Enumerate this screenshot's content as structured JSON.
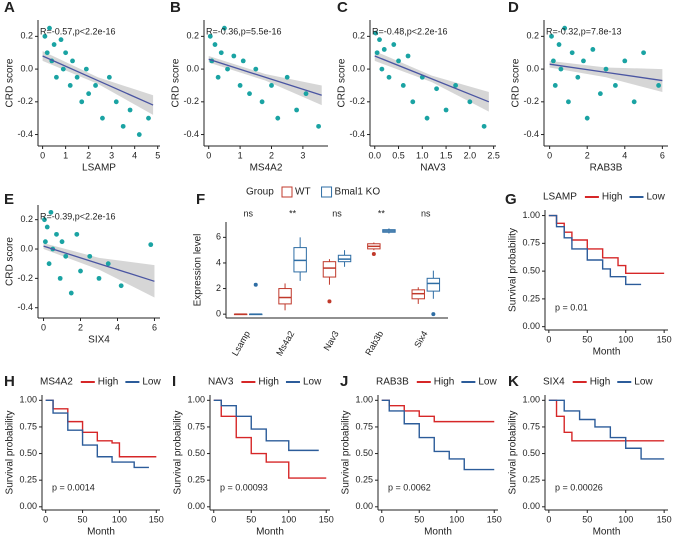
{
  "chart_data": [
    {
      "type": "scatter",
      "label": "A",
      "annotation": "R=-0.57,p<2.2e-16",
      "x_label": "LSAMP",
      "y_label": "CRD score",
      "color": "#1aa3a3",
      "x": [
        0.1,
        0.2,
        0.3,
        0.4,
        0.5,
        0.6,
        0.8,
        0.9,
        1.0,
        1.2,
        1.3,
        1.5,
        1.7,
        1.9,
        2.0,
        2.3,
        2.6,
        2.9,
        3.2,
        3.5,
        3.8,
        4.2,
        4.6
      ],
      "values": [
        0.2,
        0.1,
        0.25,
        0.05,
        0.15,
        -0.05,
        0.18,
        0.0,
        0.1,
        -0.1,
        0.05,
        -0.05,
        -0.2,
        0.0,
        -0.15,
        -0.1,
        -0.3,
        -0.05,
        -0.2,
        -0.35,
        -0.25,
        -0.4,
        -0.3
      ],
      "trend": {
        "color": "#4a55a2",
        "x": [
          0,
          2.4,
          4.8
        ],
        "y": [
          0.08,
          -0.07,
          -0.22
        ],
        "lower": [
          0.05,
          -0.09,
          -0.28
        ],
        "upper": [
          0.11,
          -0.05,
          -0.16
        ]
      },
      "xlim": [
        -0.2,
        5.1
      ],
      "xticks": [
        0,
        1,
        2,
        3,
        4,
        5
      ],
      "ylim": [
        -0.47,
        0.3
      ],
      "yticks": [
        0.2,
        {
          "value": 0,
          "label": "0.0"
        },
        -0.2,
        -0.4
      ]
    },
    {
      "type": "scatter",
      "label": "B",
      "annotation": "R=-0.36,p=5.5e-16",
      "x_label": "MS4A2",
      "y_label": "CRD score",
      "color": "#1aa3a3",
      "x": [
        0.05,
        0.1,
        0.2,
        0.3,
        0.4,
        0.5,
        0.6,
        0.8,
        1.0,
        1.1,
        1.3,
        1.5,
        1.7,
        2.0,
        2.2,
        2.5,
        2.8,
        3.1,
        3.5
      ],
      "values": [
        0.2,
        0.05,
        0.15,
        -0.05,
        0.1,
        0.25,
        0.0,
        0.08,
        -0.1,
        0.05,
        -0.15,
        0.0,
        -0.2,
        -0.1,
        -0.3,
        -0.05,
        -0.25,
        -0.15,
        -0.35
      ],
      "trend": {
        "color": "#4a55a2",
        "x": [
          0,
          1.8,
          3.6
        ],
        "y": [
          0.06,
          -0.05,
          -0.16
        ],
        "lower": [
          0.04,
          -0.07,
          -0.22
        ],
        "upper": [
          0.08,
          -0.03,
          -0.1
        ]
      },
      "xlim": [
        -0.15,
        3.8
      ],
      "xticks": [
        0,
        1,
        2,
        3
      ],
      "ylim": [
        -0.47,
        0.3
      ],
      "yticks": [
        0.2,
        {
          "value": 0,
          "label": "0.0"
        },
        -0.2,
        -0.4
      ]
    },
    {
      "type": "scatter",
      "label": "C",
      "annotation": "R=-0.48,p<2.2e-16",
      "x_label": "NAV3",
      "y_label": "CRD score",
      "color": "#1aa3a3",
      "x": [
        0.02,
        0.05,
        0.1,
        0.15,
        0.2,
        0.3,
        0.4,
        0.5,
        0.6,
        0.7,
        0.8,
        1.0,
        1.1,
        1.3,
        1.5,
        1.7,
        2.0,
        2.3
      ],
      "values": [
        0.22,
        0.1,
        0.18,
        0.0,
        0.12,
        -0.05,
        0.15,
        0.05,
        -0.1,
        0.08,
        -0.2,
        -0.05,
        -0.3,
        -0.12,
        -0.25,
        -0.1,
        -0.2,
        -0.35
      ],
      "trend": {
        "color": "#4a55a2",
        "x": [
          0,
          1.2,
          2.4
        ],
        "y": [
          0.08,
          -0.06,
          -0.2
        ],
        "lower": [
          0.05,
          -0.08,
          -0.26
        ],
        "upper": [
          0.11,
          -0.04,
          -0.14
        ]
      },
      "xlim": [
        -0.1,
        2.55
      ],
      "xticks": [
        {
          "value": 0,
          "label": "0.0"
        },
        0.5,
        {
          "value": 1,
          "label": "1.0"
        },
        1.5,
        {
          "value": 2,
          "label": "2.0"
        },
        2.5
      ],
      "ylim": [
        -0.47,
        0.3
      ],
      "yticks": [
        0.2,
        {
          "value": 0,
          "label": "0.0"
        },
        -0.2,
        -0.4
      ]
    },
    {
      "type": "scatter",
      "label": "D",
      "annotation": "R=-0.32,p=7.8e-13",
      "x_label": "RAB3B",
      "y_label": "CRD score",
      "color": "#1aa3a3",
      "x": [
        0.1,
        0.2,
        0.3,
        0.5,
        0.6,
        0.8,
        1.0,
        1.2,
        1.5,
        1.8,
        2.0,
        2.3,
        2.7,
        3.0,
        3.5,
        4.0,
        4.5,
        5.0,
        5.8
      ],
      "values": [
        0.2,
        0.05,
        -0.1,
        0.15,
        0.0,
        0.25,
        -0.2,
        0.1,
        -0.05,
        0.05,
        -0.3,
        0.12,
        -0.15,
        0.0,
        -0.1,
        0.05,
        -0.2,
        0.1,
        -0.1
      ],
      "trend": {
        "color": "#4a55a2",
        "x": [
          0,
          3,
          6
        ],
        "y": [
          0.03,
          -0.02,
          -0.07
        ],
        "lower": [
          0.01,
          -0.05,
          -0.14
        ],
        "upper": [
          0.05,
          0.01,
          0.0
        ]
      },
      "xlim": [
        -0.3,
        6.3
      ],
      "xticks": [
        0,
        2,
        4,
        6
      ],
      "ylim": [
        -0.47,
        0.3
      ],
      "yticks": [
        0.2,
        {
          "value": 0,
          "label": "0.0"
        },
        -0.2,
        -0.4
      ]
    },
    {
      "type": "scatter",
      "label": "E",
      "annotation": "R=-0.39,p<2.2e-16",
      "x_label": "SIX4",
      "y_label": "CRD score",
      "color": "#1aa3a3",
      "x": [
        0.05,
        0.1,
        0.2,
        0.3,
        0.4,
        0.5,
        0.7,
        0.9,
        1.0,
        1.2,
        1.5,
        1.8,
        2.0,
        2.5,
        3.0,
        3.5,
        4.2,
        5.8
      ],
      "values": [
        0.2,
        0.05,
        0.15,
        -0.1,
        0.25,
        0.0,
        0.1,
        -0.2,
        0.05,
        -0.05,
        -0.3,
        0.1,
        -0.15,
        -0.05,
        -0.2,
        -0.1,
        -0.25,
        0.03
      ],
      "trend": {
        "color": "#4a55a2",
        "x": [
          0,
          3,
          6
        ],
        "y": [
          0.02,
          -0.1,
          -0.22
        ],
        "lower": [
          0.0,
          -0.14,
          -0.33
        ],
        "upper": [
          0.04,
          -0.06,
          -0.11
        ]
      },
      "xlim": [
        -0.3,
        6.3
      ],
      "xticks": [
        0,
        2,
        4,
        6
      ],
      "ylim": [
        -0.47,
        0.3
      ],
      "yticks": [
        0.2,
        {
          "value": 0,
          "label": "0.0"
        },
        -0.2,
        -0.4
      ]
    },
    {
      "type": "box",
      "label": "F",
      "legend_title": "Group",
      "y_label": "Expression level",
      "categories": [
        "Lsamp",
        "Ms4a2",
        "Nav3",
        "Rab3b",
        "Six4"
      ],
      "annotations": [
        "ns",
        "**",
        "ns",
        "**",
        "ns"
      ],
      "series": [
        {
          "name": "WT",
          "color": "#c0392b",
          "values": [
            {
              "min": -0.05,
              "q1": 0,
              "median": 0,
              "q3": 0,
              "max": 0.05
            },
            {
              "min": 0.3,
              "q1": 0.8,
              "median": 1.3,
              "q3": 2.0,
              "max": 2.4
            },
            {
              "min": 2.3,
              "q1": 2.9,
              "median": 3.6,
              "q3": 4.1,
              "max": 4.3
            },
            {
              "min": 5.0,
              "q1": 5.1,
              "median": 5.3,
              "q3": 5.5,
              "max": 5.6
            },
            {
              "min": 0.8,
              "q1": 1.2,
              "median": 1.6,
              "q3": 1.9,
              "max": 2.1
            }
          ],
          "outliers": [
            [],
            [],
            [
              1.0
            ],
            [
              4.7
            ],
            []
          ]
        },
        {
          "name": "Bmal1 KO",
          "color": "#2e6da4",
          "values": [
            {
              "min": 0,
              "q1": 0,
              "median": 0,
              "q3": 0,
              "max": 0
            },
            {
              "min": 2.6,
              "q1": 3.3,
              "median": 4.2,
              "q3": 5.2,
              "max": 6.0
            },
            {
              "min": 3.7,
              "q1": 4.1,
              "median": 4.3,
              "q3": 4.6,
              "max": 5.0
            },
            {
              "min": 6.3,
              "q1": 6.4,
              "median": 6.5,
              "q3": 6.6,
              "max": 6.7
            },
            {
              "min": 1.2,
              "q1": 1.8,
              "median": 2.4,
              "q3": 2.8,
              "max": 3.4
            }
          ],
          "outliers": [
            [
              2.3
            ],
            [],
            [],
            [],
            [
              0
            ]
          ]
        }
      ],
      "ylim": [
        -0.3,
        7.2
      ],
      "yticks": [
        0,
        2,
        4,
        6
      ]
    },
    {
      "type": "survival",
      "label": "G",
      "legend_title": "LSAMP",
      "annotation": "p = 0.01",
      "x_label": "Month",
      "y_label": "Survival probability",
      "series": [
        {
          "name": "High",
          "color": "#d62728",
          "x": [
            0,
            10,
            20,
            30,
            50,
            70,
            90,
            100,
            120,
            150
          ],
          "values": [
            1,
            0.93,
            0.85,
            0.78,
            0.7,
            0.62,
            0.55,
            0.48,
            0.48,
            0.48
          ]
        },
        {
          "name": "Low",
          "color": "#2c5c9a",
          "x": [
            0,
            10,
            20,
            30,
            50,
            70,
            80,
            100,
            120
          ],
          "values": [
            1,
            0.9,
            0.8,
            0.7,
            0.6,
            0.52,
            0.45,
            0.38,
            0.38
          ]
        }
      ],
      "xlim": [
        -5,
        155
      ],
      "xticks": [
        0,
        50,
        100,
        150
      ],
      "ylim": [
        -0.03,
        1.05
      ],
      "yticks": [
        {
          "value": 0,
          "label": "0.00"
        },
        {
          "value": 0.25,
          "label": "0.25"
        },
        {
          "value": 0.5,
          "label": "0.50"
        },
        {
          "value": 0.75,
          "label": "0.75"
        },
        {
          "value": 1,
          "label": "1.00"
        }
      ]
    },
    {
      "type": "survival",
      "label": "H",
      "legend_title": "MS4A2",
      "annotation": "p = 0.0014",
      "x_label": "Month",
      "y_label": "Survival probability",
      "series": [
        {
          "name": "High",
          "color": "#d62728",
          "x": [
            0,
            10,
            30,
            50,
            70,
            90,
            100,
            150
          ],
          "values": [
            1,
            0.92,
            0.8,
            0.7,
            0.62,
            0.6,
            0.47,
            0.47
          ]
        },
        {
          "name": "Low",
          "color": "#2c5c9a",
          "x": [
            0,
            10,
            30,
            50,
            70,
            90,
            120,
            140
          ],
          "values": [
            1,
            0.88,
            0.72,
            0.58,
            0.47,
            0.42,
            0.37,
            0.37
          ]
        }
      ],
      "xlim": [
        -5,
        155
      ],
      "xticks": [
        0,
        50,
        100,
        150
      ],
      "ylim": [
        -0.03,
        1.05
      ],
      "yticks": [
        {
          "value": 0,
          "label": "0.00"
        },
        {
          "value": 0.25,
          "label": "0.25"
        },
        {
          "value": 0.5,
          "label": "0.50"
        },
        {
          "value": 0.75,
          "label": "0.75"
        },
        {
          "value": 1,
          "label": "1.00"
        }
      ]
    },
    {
      "type": "survival",
      "label": "I",
      "legend_title": "NAV3",
      "annotation": "p = 0.00093",
      "x_label": "Month",
      "y_label": "Survival probability",
      "series": [
        {
          "name": "High",
          "color": "#d62728",
          "x": [
            0,
            10,
            30,
            50,
            70,
            100,
            150
          ],
          "values": [
            1,
            0.85,
            0.65,
            0.5,
            0.42,
            0.27,
            0.27
          ]
        },
        {
          "name": "Low",
          "color": "#2c5c9a",
          "x": [
            0,
            10,
            30,
            50,
            70,
            100,
            140
          ],
          "values": [
            1,
            0.95,
            0.85,
            0.73,
            0.62,
            0.53,
            0.53
          ]
        }
      ],
      "xlim": [
        -5,
        155
      ],
      "xticks": [
        0,
        50,
        100,
        150
      ],
      "ylim": [
        -0.03,
        1.05
      ],
      "yticks": [
        {
          "value": 0,
          "label": "0.00"
        },
        {
          "value": 0.25,
          "label": "0.25"
        },
        {
          "value": 0.5,
          "label": "0.50"
        },
        {
          "value": 0.75,
          "label": "0.75"
        },
        {
          "value": 1,
          "label": "1.00"
        }
      ]
    },
    {
      "type": "survival",
      "label": "J",
      "legend_title": "RAB3B",
      "annotation": "p = 0.0062",
      "x_label": "Month",
      "y_label": "Survival probability",
      "series": [
        {
          "name": "High",
          "color": "#d62728",
          "x": [
            0,
            10,
            30,
            50,
            70,
            150
          ],
          "values": [
            1,
            0.95,
            0.9,
            0.85,
            0.8,
            0.8
          ]
        },
        {
          "name": "Low",
          "color": "#2c5c9a",
          "x": [
            0,
            10,
            30,
            50,
            70,
            90,
            110,
            150
          ],
          "values": [
            1,
            0.9,
            0.78,
            0.65,
            0.52,
            0.45,
            0.35,
            0.35
          ]
        }
      ],
      "xlim": [
        -5,
        155
      ],
      "xticks": [
        0,
        50,
        100,
        150
      ],
      "ylim": [
        -0.03,
        1.05
      ],
      "yticks": [
        {
          "value": 0,
          "label": "0.00"
        },
        {
          "value": 0.25,
          "label": "0.25"
        },
        {
          "value": 0.5,
          "label": "0.50"
        },
        {
          "value": 0.75,
          "label": "0.75"
        },
        {
          "value": 1,
          "label": "1.00"
        }
      ]
    },
    {
      "type": "survival",
      "label": "K",
      "legend_title": "SIX4",
      "annotation": "p = 0.00026",
      "x_label": "Month",
      "y_label": "Survival probability",
      "series": [
        {
          "name": "High",
          "color": "#d62728",
          "x": [
            0,
            10,
            20,
            30,
            150
          ],
          "values": [
            1,
            0.85,
            0.7,
            0.62,
            0.62
          ]
        },
        {
          "name": "Low",
          "color": "#2c5c9a",
          "x": [
            0,
            20,
            40,
            60,
            80,
            100,
            120,
            150
          ],
          "values": [
            1,
            0.9,
            0.82,
            0.75,
            0.65,
            0.55,
            0.45,
            0.45
          ]
        }
      ],
      "xlim": [
        -5,
        155
      ],
      "xticks": [
        0,
        50,
        100,
        150
      ],
      "ylim": [
        -0.03,
        1.05
      ],
      "yticks": [
        {
          "value": 0,
          "label": "0.00"
        },
        {
          "value": 0.25,
          "label": "0.25"
        },
        {
          "value": 0.5,
          "label": "0.50"
        },
        {
          "value": 0.75,
          "label": "0.75"
        },
        {
          "value": 1,
          "label": "1.00"
        }
      ]
    }
  ]
}
